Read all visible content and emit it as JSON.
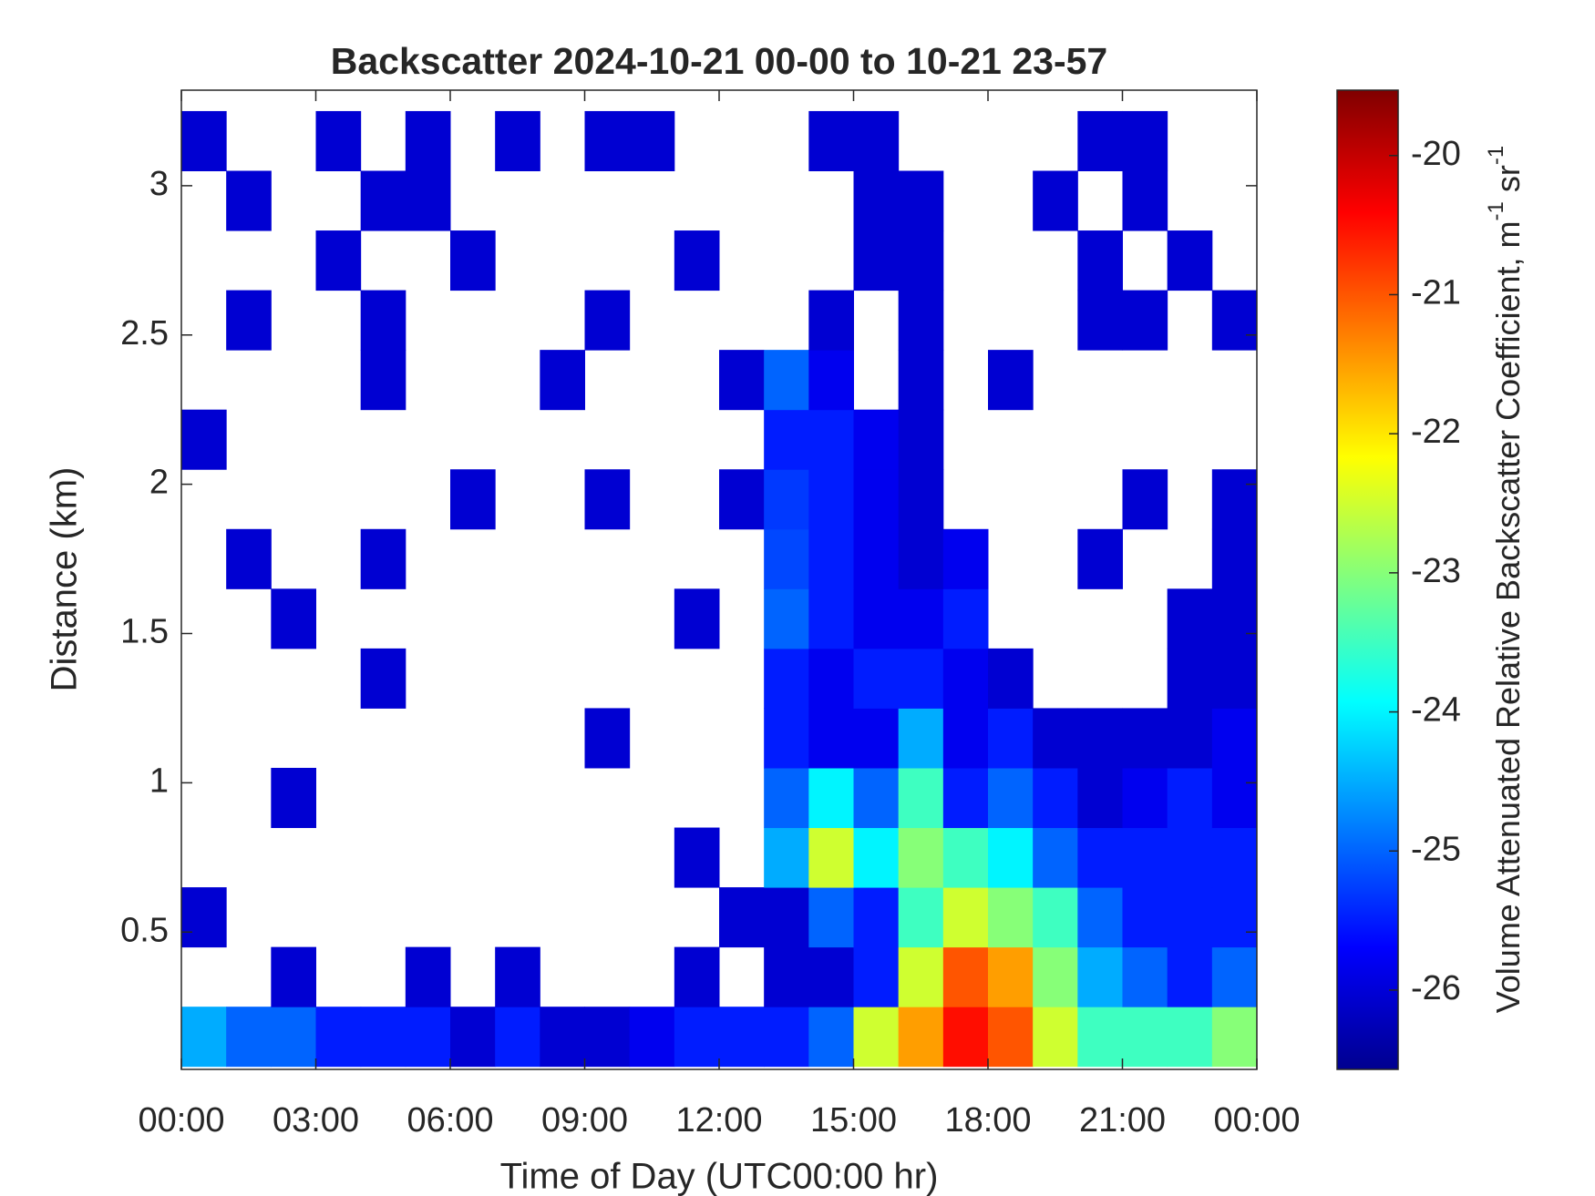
{
  "chart_data": {
    "type": "heatmap",
    "title": "Backscatter 2024-10-21 00-00 to 10-21 23-57",
    "x_label": "Time of Day (UTC00:00 hr)",
    "y_label": "Distance (km)",
    "colorbar_label": "Volume Attenuated Relative Backscatter Coefficient, m",
    "colorbar_label_sup1": "-1",
    "colorbar_label_mid": " sr",
    "colorbar_label_sup2": "-1",
    "colormap": "jet",
    "x": [
      0.5,
      1.5,
      2.5,
      3.5,
      4.5,
      5.5,
      6.5,
      7.5,
      8.5,
      9.5,
      10.5,
      11.5,
      12.5,
      13.5,
      14.5,
      15.5,
      16.5,
      17.5,
      18.5,
      19.5,
      20.5,
      21.5,
      22.5,
      23.5
    ],
    "y": [
      0.15,
      0.35,
      0.55,
      0.75,
      0.95,
      1.15,
      1.35,
      1.55,
      1.75,
      1.95,
      2.15,
      2.35,
      2.55,
      2.75,
      2.95,
      3.15
    ],
    "z": [
      [
        -24.5,
        -25,
        -25,
        -25.5,
        -25.5,
        -25.5,
        -26,
        -25.5,
        -26,
        -26,
        -25.8,
        -25.5,
        -25.5,
        -25.5,
        -25,
        -22.5,
        -21.5,
        -20.5,
        -21,
        -22.5,
        -23.5,
        -23.5,
        -23.5,
        -23
      ],
      [
        null,
        null,
        -26,
        null,
        null,
        -26,
        null,
        -26,
        null,
        null,
        null,
        -26,
        null,
        -26,
        -26,
        -25.5,
        -22.5,
        -21,
        -21.5,
        -23,
        -24.5,
        -25,
        -25.5,
        -25
      ],
      [
        -26,
        null,
        null,
        null,
        null,
        null,
        null,
        null,
        null,
        null,
        null,
        null,
        -26,
        -26,
        -25,
        -25.5,
        -23.5,
        -22.5,
        -23,
        -23.5,
        -25,
        -25.5,
        -25.5,
        -25.5
      ],
      [
        null,
        null,
        null,
        null,
        null,
        null,
        null,
        null,
        null,
        null,
        null,
        -26,
        null,
        -24.5,
        -22.5,
        -24,
        -23,
        -23.5,
        -24,
        -25,
        -25.5,
        -25.5,
        -25.5,
        -25.5
      ],
      [
        null,
        null,
        -26,
        null,
        null,
        null,
        null,
        null,
        null,
        null,
        null,
        null,
        null,
        -25,
        -24,
        -25,
        -23.5,
        -25.5,
        -25,
        -25.5,
        -26,
        -25.8,
        -25.5,
        -25.8
      ],
      [
        null,
        null,
        null,
        null,
        null,
        null,
        null,
        null,
        null,
        -26,
        null,
        null,
        null,
        -25.5,
        -25.8,
        -25.8,
        -24.5,
        -25.8,
        -25.5,
        -26,
        -26,
        -26,
        -26,
        -25.8
      ],
      [
        null,
        null,
        null,
        null,
        -26,
        null,
        null,
        null,
        null,
        null,
        null,
        null,
        null,
        -25.5,
        -25.8,
        -25.5,
        -25.5,
        -25.8,
        -26,
        null,
        null,
        null,
        -26,
        -26
      ],
      [
        null,
        null,
        -26,
        null,
        null,
        null,
        null,
        null,
        null,
        null,
        null,
        -26,
        null,
        -25,
        -25.5,
        -25.8,
        -25.8,
        -25.5,
        null,
        null,
        null,
        null,
        -26,
        -26
      ],
      [
        null,
        -26,
        null,
        null,
        -26,
        null,
        null,
        null,
        null,
        null,
        null,
        null,
        null,
        -25.2,
        -25.5,
        -25.8,
        -26,
        -25.8,
        null,
        null,
        -26,
        null,
        null,
        -26
      ],
      [
        null,
        null,
        null,
        null,
        null,
        null,
        -26,
        null,
        null,
        -26,
        null,
        null,
        -26,
        -25.3,
        -25.5,
        -25.8,
        -26,
        null,
        null,
        null,
        null,
        -26,
        null,
        -26
      ],
      [
        -26,
        null,
        null,
        null,
        null,
        null,
        null,
        null,
        null,
        null,
        null,
        null,
        null,
        -25.5,
        -25.5,
        -25.8,
        -26,
        null,
        null,
        null,
        null,
        null,
        null,
        null
      ],
      [
        null,
        null,
        null,
        null,
        -26,
        null,
        null,
        null,
        -26,
        null,
        null,
        null,
        -26,
        -25,
        -25.8,
        null,
        -26,
        null,
        -26,
        null,
        null,
        null,
        null,
        null
      ],
      [
        null,
        -26,
        null,
        null,
        -26,
        null,
        null,
        null,
        null,
        -26,
        null,
        null,
        null,
        null,
        -26,
        null,
        -26,
        null,
        null,
        null,
        -26,
        -26,
        null,
        -26
      ],
      [
        null,
        null,
        null,
        -26,
        null,
        null,
        -26,
        null,
        null,
        null,
        null,
        -26,
        null,
        null,
        null,
        -26,
        -26,
        null,
        null,
        null,
        -26,
        null,
        -26,
        null
      ],
      [
        null,
        -26,
        null,
        null,
        -26,
        -26,
        null,
        null,
        null,
        null,
        null,
        null,
        null,
        null,
        null,
        -26,
        -26,
        null,
        null,
        -26,
        null,
        -26,
        null,
        null
      ],
      [
        -26,
        null,
        null,
        -26,
        null,
        -26,
        null,
        -26,
        null,
        -26,
        -26,
        null,
        null,
        null,
        -26,
        -26,
        null,
        null,
        null,
        null,
        -26,
        -26,
        null,
        null
      ]
    ],
    "xlim": [
      0,
      24
    ],
    "xticks": [
      {
        "value": 0,
        "label": "00:00"
      },
      {
        "value": 3,
        "label": "03:00"
      },
      {
        "value": 6,
        "label": "06:00"
      },
      {
        "value": 9,
        "label": "09:00"
      },
      {
        "value": 12,
        "label": "12:00"
      },
      {
        "value": 15,
        "label": "15:00"
      },
      {
        "value": 18,
        "label": "18:00"
      },
      {
        "value": 21,
        "label": "21:00"
      },
      {
        "value": 24,
        "label": "00:00"
      }
    ],
    "ylim": [
      0.04,
      3.32
    ],
    "yticks": [
      0.5,
      1,
      1.5,
      2,
      2.5,
      3
    ],
    "clim": [
      -26.57,
      -19.53
    ],
    "cticks": [
      -26,
      -25,
      -24,
      -23,
      -22,
      -21,
      -20
    ]
  }
}
